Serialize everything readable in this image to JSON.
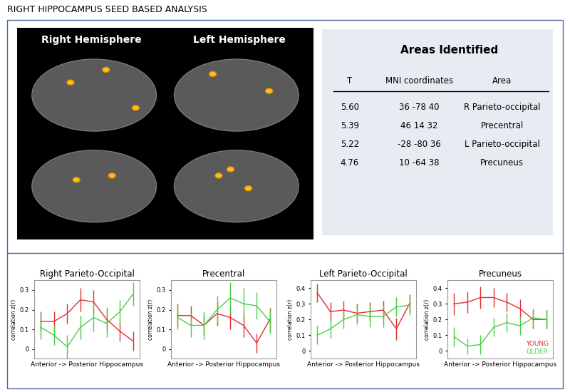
{
  "title": "RIGHT HIPPOCAMPUS SEED BASED ANALYSIS",
  "brain_panel": {
    "labels": [
      "Right Hemisphere",
      "Left Hemisphere"
    ]
  },
  "table": {
    "title": "Areas Identified",
    "header": [
      "T",
      "MNI coordinates",
      "Area"
    ],
    "rows": [
      [
        "5.60",
        "36 -78 40",
        "R Parieto-occipital"
      ],
      [
        "5.39",
        "46 14 32",
        "Precentral"
      ],
      [
        "5.22",
        "-28 -80 36",
        "L Parieto-occipital"
      ],
      [
        "4.76",
        "10 -64 38",
        "Precuneus"
      ]
    ]
  },
  "chart_data": [
    {
      "type": "line",
      "title": "Right Parieto-Occipital",
      "x_label": "Anterior -> Posterior Hippocampus",
      "y_label": "correlation z(r)",
      "categories": [
        null,
        null,
        null,
        null,
        null,
        null,
        null,
        null
      ],
      "tick_labels": "y",
      "grid": false,
      "ylim": [
        -0.05,
        0.35
      ],
      "yticks": [
        0,
        0.1,
        0.2,
        0.3
      ],
      "series": [
        {
          "name": "YOUNG",
          "color": "#e03030",
          "values": [
            0.14,
            0.14,
            0.18,
            0.25,
            0.24,
            0.15,
            0.09,
            0.04
          ],
          "errors": [
            0.05,
            0.05,
            0.05,
            0.06,
            0.06,
            0.06,
            0.05,
            0.05
          ]
        },
        {
          "name": "OLDER",
          "color": "#4ccc4c",
          "values": [
            0.11,
            0.07,
            0.01,
            0.11,
            0.16,
            0.13,
            0.19,
            0.28
          ],
          "errors": [
            0.06,
            0.05,
            0.06,
            0.06,
            0.07,
            0.07,
            0.06,
            0.06
          ]
        }
      ]
    },
    {
      "type": "line",
      "title": "Precentral",
      "x_label": "Anterior -> Posterior Hippocampus",
      "y_label": "correlation z(r)",
      "categories": [
        null,
        null,
        null,
        null,
        null,
        null,
        null,
        null
      ],
      "tick_labels": "y",
      "grid": false,
      "ylim": [
        -0.05,
        0.35
      ],
      "yticks": [
        0,
        0.1,
        0.2,
        0.3
      ],
      "series": [
        {
          "name": "YOUNG",
          "color": "#e03030",
          "values": [
            0.17,
            0.17,
            0.12,
            0.18,
            0.16,
            0.12,
            0.03,
            0.15
          ],
          "errors": [
            0.06,
            0.05,
            0.05,
            0.06,
            0.06,
            0.06,
            0.05,
            0.06
          ]
        },
        {
          "name": "OLDER",
          "color": "#4ccc4c",
          "values": [
            0.16,
            0.12,
            0.12,
            0.2,
            0.26,
            0.23,
            0.22,
            0.14
          ],
          "errors": [
            0.06,
            0.06,
            0.07,
            0.07,
            0.08,
            0.08,
            0.07,
            0.06
          ]
        }
      ]
    },
    {
      "type": "line",
      "title": "Left Parieto-Occipital",
      "x_label": "Anterior -> Posterior Hippocampus",
      "y_label": "correlation z(r)",
      "categories": [
        null,
        null,
        null,
        null,
        null,
        null,
        null,
        null
      ],
      "tick_labels": "y",
      "grid": false,
      "ylim": [
        -0.05,
        0.45
      ],
      "yticks": [
        0,
        0.1,
        0.2,
        0.3,
        0.4
      ],
      "series": [
        {
          "name": "YOUNG",
          "color": "#e03030",
          "values": [
            0.37,
            0.25,
            0.26,
            0.24,
            0.25,
            0.26,
            0.14,
            0.3
          ],
          "errors": [
            0.06,
            0.06,
            0.06,
            0.06,
            0.06,
            0.06,
            0.07,
            0.06
          ]
        },
        {
          "name": "OLDER",
          "color": "#4ccc4c",
          "values": [
            0.1,
            0.14,
            0.2,
            0.23,
            0.22,
            0.22,
            0.28,
            0.29
          ],
          "errors": [
            0.06,
            0.06,
            0.06,
            0.06,
            0.07,
            0.07,
            0.06,
            0.06
          ]
        }
      ]
    },
    {
      "type": "line",
      "title": "Precuneus",
      "x_label": "Anterior -> Posterior Hippocampus",
      "y_label": "correlation z(r)",
      "categories": [
        null,
        null,
        null,
        null,
        null,
        null,
        null,
        null
      ],
      "tick_labels": "y",
      "grid": false,
      "legend": "lower right",
      "ylim": [
        -0.05,
        0.45
      ],
      "yticks": [
        0,
        0.1,
        0.2,
        0.3,
        0.4
      ],
      "series": [
        {
          "name": "YOUNG",
          "color": "#e03030",
          "values": [
            0.3,
            0.31,
            0.34,
            0.34,
            0.31,
            0.27,
            0.2,
            0.2
          ],
          "errors": [
            0.07,
            0.07,
            0.07,
            0.06,
            0.06,
            0.06,
            0.06,
            0.06
          ]
        },
        {
          "name": "OLDER",
          "color": "#4ccc4c",
          "values": [
            0.09,
            0.03,
            0.04,
            0.15,
            0.18,
            0.16,
            0.21,
            0.2
          ],
          "errors": [
            0.06,
            0.05,
            0.06,
            0.06,
            0.06,
            0.06,
            0.06,
            0.06
          ]
        }
      ]
    }
  ]
}
